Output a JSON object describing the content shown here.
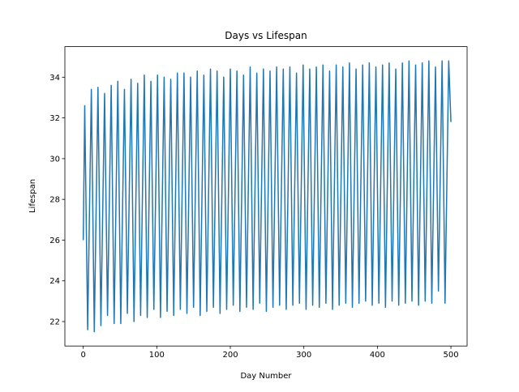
{
  "chart_data": {
    "type": "line",
    "title": "Days vs Lifespan",
    "x_label": "Day Number",
    "y_label": "Lifespan",
    "x": [
      0,
      2,
      6,
      11,
      15,
      20,
      24,
      29,
      33,
      38,
      42,
      47,
      51,
      56,
      60,
      65,
      69,
      74,
      78,
      83,
      87,
      92,
      96,
      101,
      105,
      110,
      114,
      119,
      123,
      128,
      132,
      137,
      141,
      146,
      150,
      155,
      159,
      164,
      168,
      173,
      177,
      182,
      186,
      191,
      195,
      200,
      204,
      209,
      213,
      218,
      222,
      227,
      231,
      236,
      240,
      245,
      249,
      254,
      258,
      263,
      267,
      272,
      276,
      281,
      285,
      290,
      294,
      299,
      303,
      308,
      312,
      317,
      321,
      326,
      330,
      335,
      339,
      344,
      348,
      353,
      357,
      362,
      366,
      371,
      375,
      380,
      384,
      389,
      393,
      398,
      402,
      407,
      411,
      416,
      420,
      425,
      429,
      434,
      438,
      443,
      447,
      452,
      456,
      461,
      465,
      470,
      474,
      479,
      483,
      488,
      492,
      497,
      500
    ],
    "series": [
      {
        "color": "#1f77b4",
        "values": [
          26,
          32.6,
          21.6,
          33.4,
          21.5,
          33.5,
          21.8,
          33.2,
          22.3,
          33.6,
          21.9,
          33.8,
          21.9,
          33.4,
          22.4,
          33.9,
          22.0,
          33.7,
          22.3,
          34.1,
          22.2,
          33.8,
          22.6,
          34.1,
          22.2,
          34.0,
          22.5,
          33.9,
          22.3,
          34.2,
          22.6,
          34.2,
          22.4,
          34.0,
          22.7,
          34.3,
          22.3,
          34.1,
          22.5,
          34.4,
          22.7,
          34.3,
          22.4,
          34.0,
          22.6,
          34.4,
          22.8,
          34.3,
          22.5,
          34.1,
          22.7,
          34.5,
          22.6,
          34.2,
          22.9,
          34.4,
          22.5,
          34.3,
          22.7,
          34.5,
          22.8,
          34.4,
          22.6,
          34.5,
          22.8,
          34.2,
          22.9,
          34.6,
          22.6,
          34.4,
          22.8,
          34.5,
          22.7,
          34.6,
          22.9,
          34.3,
          22.6,
          34.6,
          22.8,
          34.5,
          22.9,
          34.7,
          22.7,
          34.4,
          22.9,
          34.6,
          23.0,
          34.7,
          22.8,
          34.5,
          22.9,
          34.6,
          22.7,
          34.7,
          23.0,
          34.4,
          22.8,
          34.7,
          22.9,
          34.8,
          23.0,
          34.6,
          22.8,
          34.7,
          23.0,
          34.8,
          22.9,
          34.5,
          23.5,
          34.8,
          22.9,
          34.8,
          31.8
        ]
      }
    ],
    "xlim": [
      -25,
      522
    ],
    "xticks": [
      0,
      100,
      200,
      300,
      400,
      500
    ],
    "ylim": [
      20.8,
      35.5
    ],
    "yticks": [
      22,
      24,
      26,
      28,
      30,
      32,
      34
    ]
  }
}
